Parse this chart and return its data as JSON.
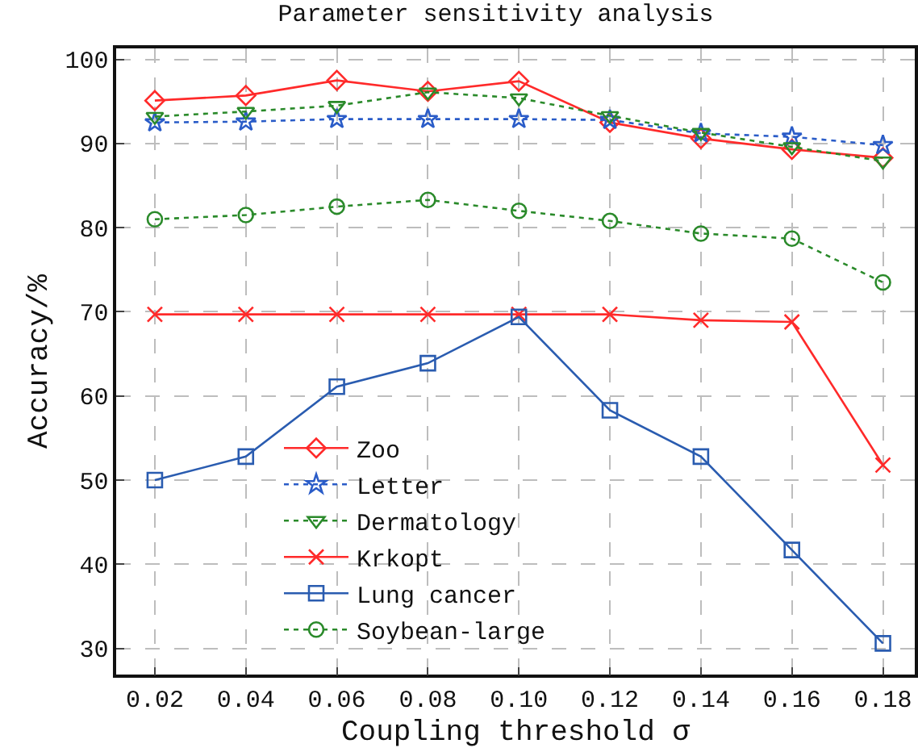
{
  "chart_data": {
    "type": "line",
    "title": "Parameter sensitivity analysis",
    "xlabel": "Coupling threshold σ",
    "ylabel": "Accuracy/%",
    "x": [
      0.02,
      0.04,
      0.06,
      0.08,
      0.1,
      0.12,
      0.14,
      0.16,
      0.18
    ],
    "series": [
      {
        "name": "Zoo",
        "color": "#ff2a2a",
        "marker": "diamond",
        "line_style": "solid",
        "values": [
          95.1,
          95.7,
          97.5,
          96.2,
          97.4,
          92.5,
          90.6,
          89.3,
          88.3
        ]
      },
      {
        "name": "Letter",
        "color": "#2a5cc8",
        "marker": "star",
        "line_style": "dotted",
        "values": [
          92.5,
          92.6,
          92.9,
          92.9,
          92.9,
          92.8,
          91.2,
          90.8,
          89.8
        ]
      },
      {
        "name": "Dermatology",
        "color": "#2a8a2a",
        "marker": "triangle",
        "line_style": "dotted",
        "values": [
          93.2,
          93.8,
          94.5,
          96.1,
          95.4,
          93.3,
          91.3,
          89.6,
          87.9
        ]
      },
      {
        "name": "Krkopt",
        "color": "#ff2a2a",
        "marker": "cross",
        "line_style": "solid",
        "values": [
          69.7,
          69.7,
          69.7,
          69.7,
          69.7,
          69.7,
          69.0,
          68.8,
          51.8
        ]
      },
      {
        "name": "Lung cancer",
        "color": "#2a5cb0",
        "marker": "square",
        "line_style": "solid",
        "values": [
          50.0,
          52.8,
          61.1,
          63.9,
          69.4,
          58.3,
          52.8,
          41.7,
          30.6
        ]
      },
      {
        "name": "Soybean-large",
        "color": "#2a8a2a",
        "marker": "circle",
        "line_style": "dotted",
        "values": [
          81.0,
          81.5,
          82.5,
          83.3,
          82.0,
          80.8,
          79.3,
          78.7,
          73.5
        ]
      }
    ],
    "xlim": [
      0.0115,
      0.187
    ],
    "ylim": [
      26.9,
      101.3
    ],
    "xticks": [
      0.02,
      0.04,
      0.06,
      0.08,
      {
        "value": 0.1,
        "label": "0.10"
      },
      0.12,
      0.14,
      0.16,
      0.18
    ],
    "yticks": [
      30,
      40,
      50,
      60,
      70,
      80,
      90,
      100
    ],
    "grid": true,
    "legend": "bottom left"
  }
}
